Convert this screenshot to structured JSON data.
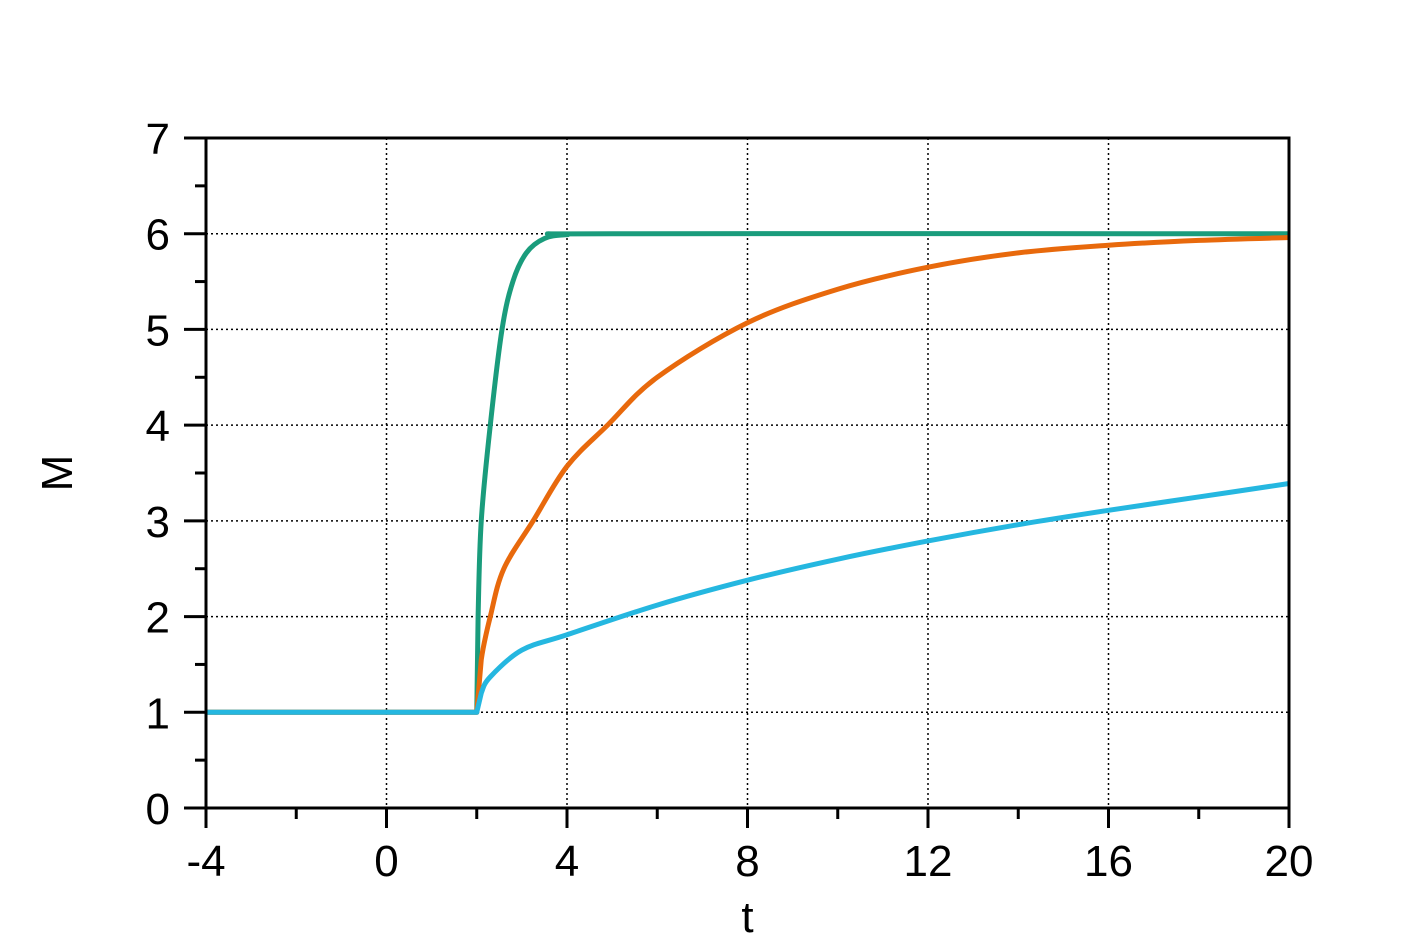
{
  "chart_data": {
    "type": "line",
    "title": "",
    "xlabel": "t",
    "ylabel": "M",
    "xlim": [
      -4,
      20
    ],
    "ylim": [
      0,
      7
    ],
    "xticks": [
      -4,
      0,
      4,
      8,
      12,
      16,
      20
    ],
    "xticks_minor_step": 2,
    "yticks": [
      0,
      1,
      2,
      3,
      4,
      5,
      6,
      7
    ],
    "yticks_minor_step": 0.5,
    "grid": true,
    "grid_style": "dotted",
    "legend": "none",
    "series": [
      {
        "color": "#1a9c7c",
        "points": [
          [
            -4,
            1
          ],
          [
            2,
            1
          ],
          [
            2.03,
            2
          ],
          [
            2.1,
            3
          ],
          [
            2.3,
            4
          ],
          [
            2.56,
            5
          ],
          [
            2.8,
            5.5
          ],
          [
            3.1,
            5.8
          ],
          [
            3.5,
            5.95
          ],
          [
            4,
            5.99
          ],
          [
            5,
            6
          ],
          [
            20,
            6
          ]
        ]
      },
      {
        "color": "#e8690c",
        "points": [
          [
            -4,
            1
          ],
          [
            2,
            1
          ],
          [
            2.1,
            1.55
          ],
          [
            2.3,
            2
          ],
          [
            2.6,
            2.5
          ],
          [
            3.25,
            3
          ],
          [
            4,
            3.57
          ],
          [
            4.9,
            4
          ],
          [
            6,
            4.5
          ],
          [
            8,
            5.07
          ],
          [
            10,
            5.42
          ],
          [
            12,
            5.65
          ],
          [
            14,
            5.8
          ],
          [
            16,
            5.88
          ],
          [
            18,
            5.93
          ],
          [
            20,
            5.96
          ]
        ]
      },
      {
        "color": "#25b7e0",
        "points": [
          [
            -4,
            1
          ],
          [
            2,
            1
          ],
          [
            2.1,
            1.2
          ],
          [
            2.3,
            1.37
          ],
          [
            3,
            1.65
          ],
          [
            4,
            1.81
          ],
          [
            6,
            2.12
          ],
          [
            8,
            2.38
          ],
          [
            10,
            2.6
          ],
          [
            12,
            2.79
          ],
          [
            14,
            2.96
          ],
          [
            16,
            3.11
          ],
          [
            18,
            3.25
          ],
          [
            20,
            3.39
          ]
        ]
      }
    ]
  }
}
